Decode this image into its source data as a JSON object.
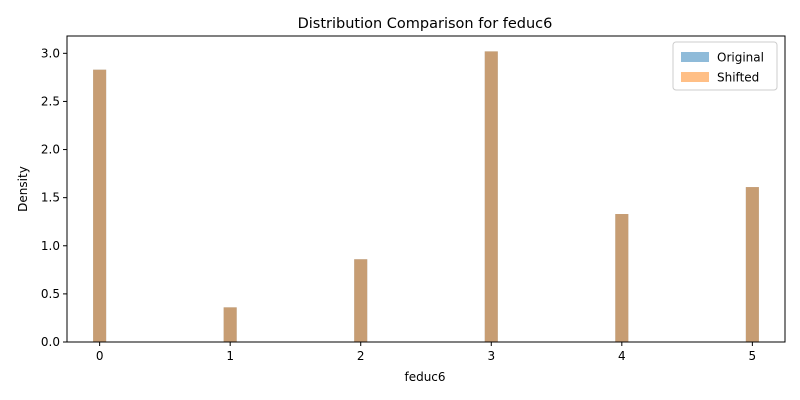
{
  "chart_data": {
    "type": "bar",
    "title": "Distribution Comparison for feduc6",
    "xlabel": "feduc6",
    "ylabel": "Density",
    "xlim": [
      -0.25,
      5.25
    ],
    "ylim": [
      0,
      3.18
    ],
    "xticks": [
      0,
      1,
      2,
      3,
      4,
      5
    ],
    "xtick_labels": [
      "0",
      "1",
      "2",
      "3",
      "4",
      "5"
    ],
    "yticks": [
      0,
      0.5,
      1.0,
      1.5,
      2.0,
      2.5,
      3.0
    ],
    "ytick_labels": [
      "0.0",
      "0.5",
      "1.0",
      "1.5",
      "2.0",
      "2.5",
      "3.0"
    ],
    "grid": false,
    "legend_position": "top-right",
    "bar_width": 0.1,
    "series": [
      {
        "name": "Original",
        "color": "#1f77b4",
        "alpha": 0.5,
        "x": [
          0,
          1,
          2,
          3,
          4,
          5
        ],
        "values": [
          2.83,
          0.36,
          0.86,
          3.02,
          1.33,
          1.61
        ]
      },
      {
        "name": "Shifted",
        "color": "#ff7f0e",
        "alpha": 0.5,
        "x": [
          0,
          1,
          2,
          3,
          4,
          5
        ],
        "values": [
          2.83,
          0.36,
          0.86,
          3.02,
          1.33,
          1.61
        ]
      }
    ]
  }
}
